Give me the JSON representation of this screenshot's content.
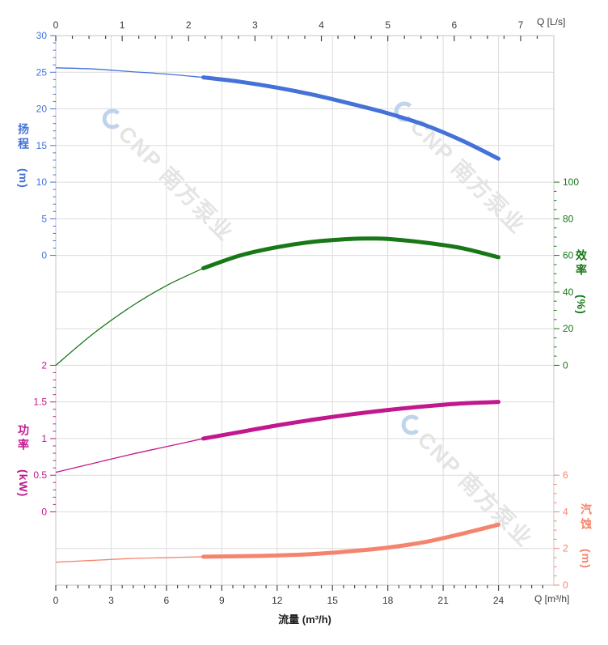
{
  "chart_data": {
    "type": "line",
    "title": "",
    "watermark": "CNP 南方泵业",
    "grid": true,
    "x_bottom": {
      "label": "流量 (m³/h)",
      "unit": "Q [m³/h]",
      "majors": [
        0,
        3,
        6,
        9,
        12,
        15,
        18,
        21,
        24
      ],
      "minor_step": 0.6,
      "minor_max": 26.4,
      "range": [
        0,
        27
      ],
      "color": "#3a3a3a"
    },
    "x_top": {
      "unit": "Q [L/s]",
      "majors": [
        0,
        1,
        2,
        3,
        4,
        5,
        6,
        7
      ],
      "minor_step": 0.25,
      "minor_max": 7.25,
      "range": [
        0,
        7.5
      ],
      "color": "#3a3a3a"
    },
    "axes": {
      "head": {
        "title": "扬程",
        "unit": "(m)",
        "color": "#4472d8",
        "side": "left",
        "majors": [
          0,
          5,
          10,
          15,
          20,
          25,
          30
        ],
        "minor_step": 1,
        "range": [
          0,
          30
        ]
      },
      "eff": {
        "title": "效率",
        "unit": "(%)",
        "color": "#187818",
        "side": "right",
        "majors": [
          0,
          20,
          40,
          60,
          80,
          100
        ],
        "minor_step": 5,
        "range": [
          0,
          100
        ]
      },
      "power": {
        "title": "功率",
        "unit": "(kW)",
        "color": "#c2188e",
        "side": "left",
        "majors": [
          0,
          0.5,
          1,
          1.5,
          2
        ],
        "minor_step": 0.1,
        "range": [
          0,
          2
        ]
      },
      "npsh": {
        "title": "汽蚀",
        "unit": "(m)",
        "color": "#f4846e",
        "side": "right",
        "majors": [
          0,
          2,
          4,
          6
        ],
        "minor_step": 0.5,
        "range": [
          0,
          6
        ]
      }
    },
    "rated_range": {
      "from": 8,
      "to": 24
    },
    "series": [
      {
        "id": "head",
        "axis": "head",
        "color": "#4472d8",
        "points": [
          [
            0,
            25.6
          ],
          [
            2,
            25.45
          ],
          [
            4,
            25.1
          ],
          [
            6,
            24.75
          ],
          [
            8,
            24.3
          ],
          [
            10,
            23.7
          ],
          [
            12,
            22.9
          ],
          [
            14,
            21.9
          ],
          [
            16,
            20.7
          ],
          [
            18,
            19.4
          ],
          [
            20,
            17.8
          ],
          [
            22,
            15.7
          ],
          [
            24,
            13.2
          ]
        ]
      },
      {
        "id": "efficiency",
        "axis": "eff",
        "color": "#187818",
        "points": [
          [
            0,
            0
          ],
          [
            2,
            17
          ],
          [
            4,
            31.5
          ],
          [
            6,
            43.5
          ],
          [
            8,
            53
          ],
          [
            10,
            60
          ],
          [
            12,
            64.5
          ],
          [
            14,
            67.5
          ],
          [
            16,
            69
          ],
          [
            17,
            69.2
          ],
          [
            18,
            69
          ],
          [
            20,
            67
          ],
          [
            22,
            64
          ],
          [
            24,
            59
          ]
        ]
      },
      {
        "id": "power",
        "axis": "power",
        "color": "#c2188e",
        "points": [
          [
            0,
            0.54
          ],
          [
            2,
            0.66
          ],
          [
            4,
            0.78
          ],
          [
            6,
            0.89
          ],
          [
            8,
            1.0
          ],
          [
            10,
            1.09
          ],
          [
            12,
            1.18
          ],
          [
            14,
            1.26
          ],
          [
            16,
            1.33
          ],
          [
            18,
            1.39
          ],
          [
            20,
            1.44
          ],
          [
            22,
            1.48
          ],
          [
            24,
            1.5
          ]
        ]
      },
      {
        "id": "npsh",
        "axis": "npsh",
        "color": "#f4846e",
        "points": [
          [
            0,
            1.25
          ],
          [
            2,
            1.35
          ],
          [
            4,
            1.45
          ],
          [
            6,
            1.5
          ],
          [
            8,
            1.55
          ],
          [
            10,
            1.58
          ],
          [
            12,
            1.62
          ],
          [
            14,
            1.7
          ],
          [
            16,
            1.85
          ],
          [
            18,
            2.05
          ],
          [
            20,
            2.35
          ],
          [
            22,
            2.8
          ],
          [
            24,
            3.3
          ]
        ]
      }
    ]
  }
}
